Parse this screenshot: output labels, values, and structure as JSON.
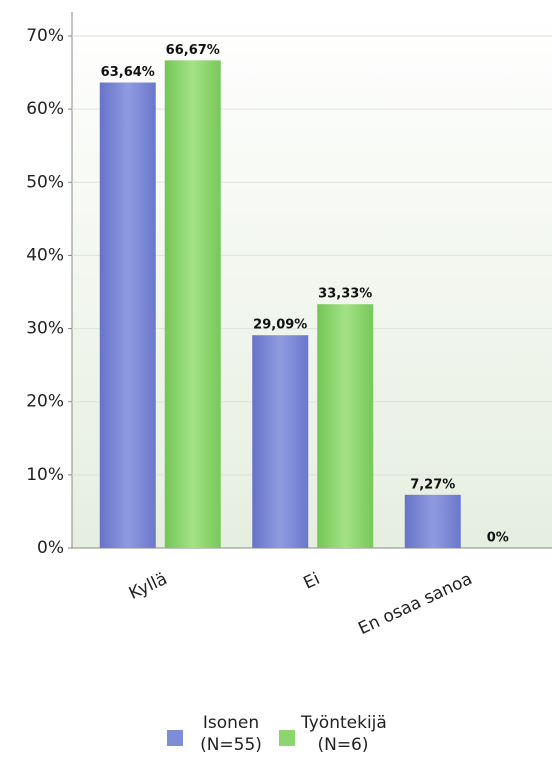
{
  "chart_data": {
    "type": "bar",
    "categories": [
      "Kyllä",
      "Ei",
      "En osaa sanoa"
    ],
    "series": [
      {
        "name": "Isonen (N=55)",
        "color": "#7f8cd6",
        "values": [
          63.64,
          29.09,
          7.27
        ],
        "value_labels": [
          "63,64%",
          "29,09%",
          "7,27%"
        ]
      },
      {
        "name": "Työntekijä (N=6)",
        "color": "#8cd66e",
        "values": [
          66.67,
          33.33,
          0
        ],
        "value_labels": [
          "66,67%",
          "33,33%",
          "0%"
        ]
      }
    ],
    "ylim": [
      0,
      70
    ],
    "yticks": [
      {
        "value": 0,
        "label": "0%"
      },
      {
        "value": 10,
        "label": "10%"
      },
      {
        "value": 20,
        "label": "20%"
      },
      {
        "value": 30,
        "label": "30%"
      },
      {
        "value": 40,
        "label": "40%"
      },
      {
        "value": 50,
        "label": "50%"
      },
      {
        "value": 60,
        "label": "60%"
      },
      {
        "value": 70,
        "label": "70%"
      }
    ],
    "grid": true,
    "legend": "bottom"
  }
}
